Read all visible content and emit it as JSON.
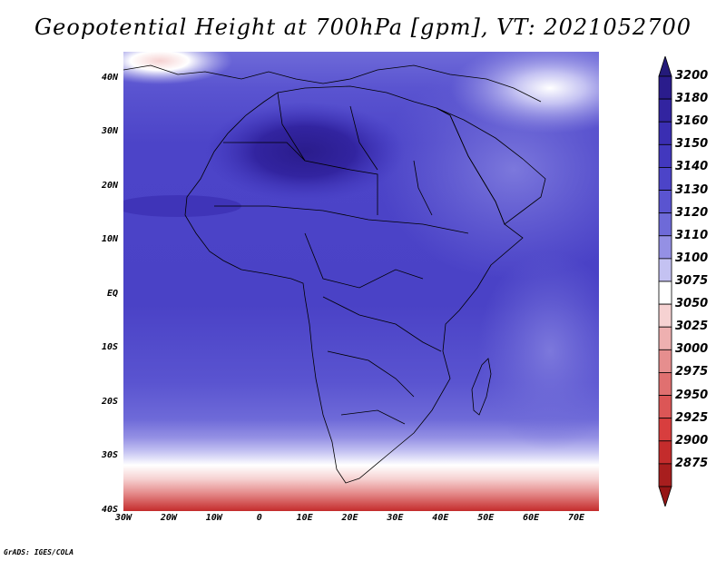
{
  "title": "Geopotential Height at 700hPa [gpm], VT: 2021052700",
  "credit": "GrADS: IGES/COLA",
  "map": {
    "lat_ticks": [
      {
        "label": "40N",
        "lat": 40
      },
      {
        "label": "30N",
        "lat": 30
      },
      {
        "label": "20N",
        "lat": 20
      },
      {
        "label": "10N",
        "lat": 10
      },
      {
        "label": "EQ",
        "lat": 0
      },
      {
        "label": "10S",
        "lat": -10
      },
      {
        "label": "20S",
        "lat": -20
      },
      {
        "label": "30S",
        "lat": -30
      },
      {
        "label": "40S",
        "lat": -40
      }
    ],
    "lon_ticks": [
      {
        "label": "30W",
        "lon": -30
      },
      {
        "label": "20W",
        "lon": -20
      },
      {
        "label": "10W",
        "lon": -10
      },
      {
        "label": "0",
        "lon": 0
      },
      {
        "label": "10E",
        "lon": 10
      },
      {
        "label": "20E",
        "lon": 20
      },
      {
        "label": "30E",
        "lon": 30
      },
      {
        "label": "40E",
        "lon": 40
      },
      {
        "label": "50E",
        "lon": 50
      },
      {
        "label": "60E",
        "lon": 60
      },
      {
        "label": "70E",
        "lon": 70
      }
    ],
    "lon_range": [
      -30,
      75
    ],
    "lat_range": [
      -40,
      45
    ],
    "colorbar": [
      {
        "label": "3200",
        "color": "#2a1c8c"
      },
      {
        "label": "3180",
        "color": "#3224a0"
      },
      {
        "label": "3160",
        "color": "#3a2eb2"
      },
      {
        "label": "3150",
        "color": "#4238be"
      },
      {
        "label": "3140",
        "color": "#4c44c8"
      },
      {
        "label": "3130",
        "color": "#5a54d0"
      },
      {
        "label": "3120",
        "color": "#6e6ad8"
      },
      {
        "label": "3110",
        "color": "#9490e4"
      },
      {
        "label": "3100",
        "color": "#c4c2f2"
      },
      {
        "label": "3075",
        "color": "#ffffff"
      },
      {
        "label": "3050",
        "color": "#f6d2d2"
      },
      {
        "label": "3025",
        "color": "#eeb0b0"
      },
      {
        "label": "3000",
        "color": "#e68e8e"
      },
      {
        "label": "2975",
        "color": "#e07070"
      },
      {
        "label": "2950",
        "color": "#dc5656"
      },
      {
        "label": "2925",
        "color": "#d83e3e"
      },
      {
        "label": "2900",
        "color": "#c42c2c"
      },
      {
        "label": "2875",
        "color": "#a81e1e"
      }
    ],
    "colorbar_top_arrow_color": "#241a7a",
    "colorbar_bottom_arrow_color": "#961616"
  }
}
